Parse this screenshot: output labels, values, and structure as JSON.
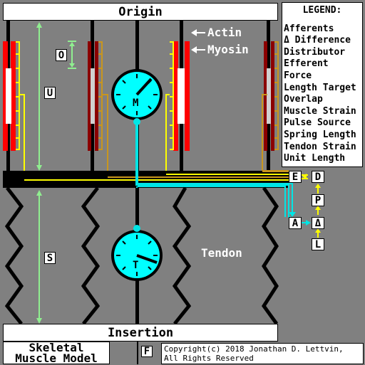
{
  "origin_label": "Origin",
  "insertion_label": "Insertion",
  "title_line1": "Skeletal",
  "title_line2": "Muscle Model",
  "copyright_line1": "Copyright(c) 2018 Jonathan D. Lettvin,",
  "copyright_line2": "All Rights Reserved",
  "actin_label": "Actin",
  "myosin_label": "Myosin",
  "tendon_label": "Tendon",
  "gauge_m_label": "M",
  "gauge_t_label": "T",
  "box_labels": {
    "O": "O",
    "U": "U",
    "S": "S",
    "E": "E",
    "D": "D",
    "P": "P",
    "A": "A",
    "delta": "Δ",
    "L": "L",
    "F": "F"
  },
  "legend": {
    "title": "LEGEND:",
    "items": [
      "Afferents",
      "Δ Difference",
      "Distributor",
      "Efferent",
      "Force",
      "Length Target",
      "Overlap",
      "Muscle Strain",
      "Pulse Source",
      "Spring Length",
      "Tendon Strain",
      "Unit Length"
    ]
  },
  "colors": {
    "background": "#808080",
    "actin": "#ff0000",
    "myosin": "#ffffff",
    "signal": "#ffff00",
    "feedback": "#00e5e5",
    "measure": "#90ee90",
    "gauge": "#00ffff"
  }
}
